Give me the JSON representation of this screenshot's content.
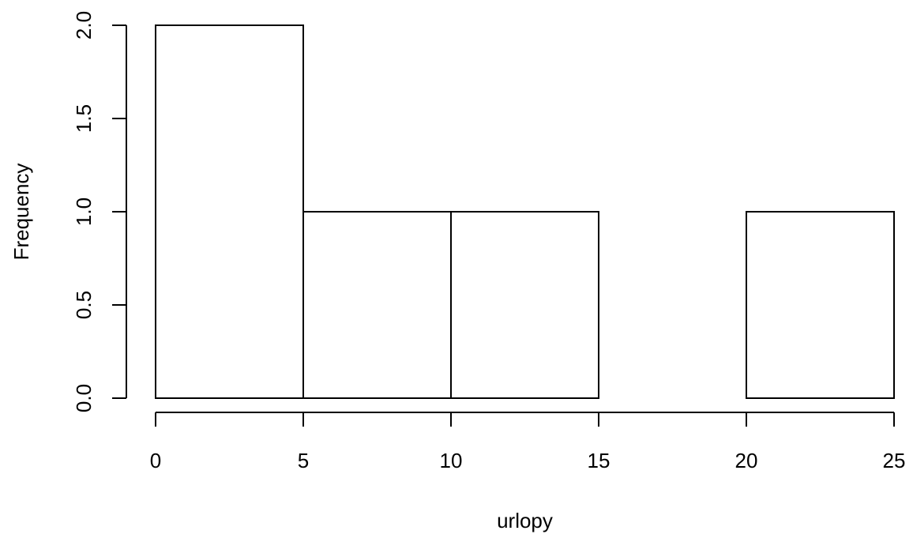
{
  "chart_data": {
    "type": "bar",
    "subtype": "histogram",
    "title": "",
    "xlabel": "urlopy",
    "ylabel": "Frequency",
    "bins": [
      {
        "start": 0,
        "end": 5,
        "count": 2
      },
      {
        "start": 5,
        "end": 10,
        "count": 1
      },
      {
        "start": 10,
        "end": 15,
        "count": 1
      },
      {
        "start": 15,
        "end": 20,
        "count": 0
      },
      {
        "start": 20,
        "end": 25,
        "count": 1
      }
    ],
    "xlim": [
      0,
      25
    ],
    "ylim": [
      0,
      2
    ],
    "x_ticks": [
      0,
      5,
      10,
      15,
      20,
      25
    ],
    "x_tick_labels": [
      "0",
      "5",
      "10",
      "15",
      "20",
      "25"
    ],
    "y_ticks": [
      0,
      0.5,
      1,
      1.5,
      2
    ],
    "y_tick_labels": [
      "0.0",
      "0.5",
      "1.0",
      "1.5",
      "2.0"
    ],
    "grid": false,
    "legend": "none",
    "colors": {
      "bar_fill": "#ffffff",
      "bar_stroke": "#000000",
      "text": "#000000"
    }
  }
}
